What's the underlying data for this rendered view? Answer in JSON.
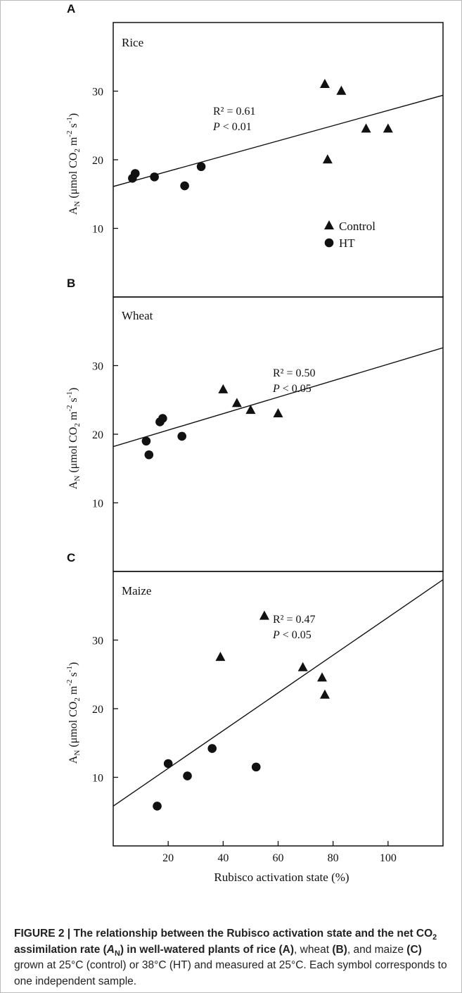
{
  "caption": {
    "figure_label": "FIGURE 2 | ",
    "bold_text": "The relationship between the Rubisco activation state and the net CO",
    "bold_text_sub": "2",
    "bold_text_2": " assimilation rate (",
    "an_letter": "A",
    "an_sub": "N",
    "bold_text_3": ") in well-watered plants of rice ",
    "rice_ref": "(A)",
    "rest_1": ", wheat ",
    "wheat_ref": "(B)",
    "rest_2": ", and maize ",
    "maize_ref": "(C)",
    "rest_3": " grown at 25°C (control) or 38°C (HT) and measured at 25°C. Each symbol corresponds to one independent sample."
  },
  "chart_data": [
    {
      "type": "scatter",
      "panel_label": "A",
      "crop": "Rice",
      "annotation": {
        "r2": "R² = 0.61",
        "p": "P < 0.01"
      },
      "xlim": [
        0,
        120
      ],
      "ylim": [
        0,
        40
      ],
      "yticks": [
        10,
        20,
        30
      ],
      "ylabel": "AN (μmol CO2 m-2 s-1)",
      "legend": {
        "position": "bottom-right",
        "entries": [
          "Control",
          "HT"
        ]
      },
      "series": [
        {
          "name": "Control",
          "marker": "triangle",
          "x": [
            77,
            83,
            78,
            92,
            100
          ],
          "y": [
            31.0,
            30.0,
            20.0,
            24.5,
            24.5
          ]
        },
        {
          "name": "HT",
          "marker": "circle",
          "x": [
            7,
            8,
            15,
            26,
            32
          ],
          "y": [
            17.3,
            18.0,
            17.5,
            16.2,
            19.0
          ]
        }
      ],
      "fit": {
        "x": [
          0,
          120
        ],
        "y": [
          16.1,
          29.4
        ]
      }
    },
    {
      "type": "scatter",
      "panel_label": "B",
      "crop": "Wheat",
      "annotation": {
        "r2": "R² = 0.50",
        "p": "P < 0.05"
      },
      "xlim": [
        0,
        120
      ],
      "ylim": [
        0,
        40
      ],
      "yticks": [
        10,
        20,
        30
      ],
      "ylabel": "AN (μmol CO2 m-2 s-1)",
      "series": [
        {
          "name": "Control",
          "marker": "triangle",
          "x": [
            40,
            45,
            50,
            60
          ],
          "y": [
            26.5,
            24.5,
            23.5,
            23.0
          ]
        },
        {
          "name": "HT",
          "marker": "circle",
          "x": [
            12,
            13,
            17,
            18,
            25
          ],
          "y": [
            19.0,
            17.0,
            21.8,
            22.3,
            19.7
          ]
        }
      ],
      "fit": {
        "x": [
          0,
          120
        ],
        "y": [
          18.2,
          32.6
        ]
      }
    },
    {
      "type": "scatter",
      "panel_label": "C",
      "crop": "Maize",
      "annotation": {
        "r2": "R² = 0.47",
        "p": "P < 0.05"
      },
      "xlim": [
        0,
        120
      ],
      "ylim": [
        0,
        40
      ],
      "yticks": [
        10,
        20,
        30
      ],
      "xticks": [
        20,
        40,
        60,
        80,
        100
      ],
      "ylabel": "AN (μmol CO2 m-2 s-1)",
      "xlabel": "Rubisco activation state (%)",
      "series": [
        {
          "name": "Control",
          "marker": "triangle",
          "x": [
            55,
            39,
            69,
            76,
            77
          ],
          "y": [
            33.5,
            27.5,
            26.0,
            24.5,
            22.0
          ]
        },
        {
          "name": "HT",
          "marker": "circle",
          "x": [
            16,
            20,
            27,
            36,
            52
          ],
          "y": [
            5.8,
            12.0,
            10.2,
            14.2,
            11.5
          ]
        }
      ],
      "fit": {
        "x": [
          0,
          120
        ],
        "y": [
          5.8,
          38.8
        ]
      }
    }
  ]
}
